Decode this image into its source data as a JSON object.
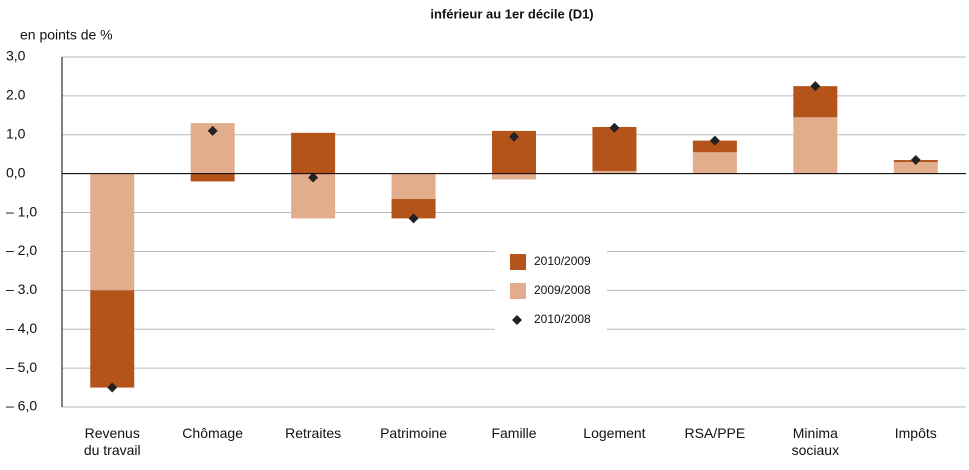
{
  "chart_data": {
    "type": "stacked_bar",
    "title": "inférieur au 1er décile (D1)",
    "y_axis_label": "en  points de %",
    "categories": [
      "Revenus du travail",
      "Chômage",
      "Retraites",
      "Patrimoine",
      "Famille",
      "Logement",
      "RSA/PPE",
      "Minima sociaux",
      "Impôts"
    ],
    "series": [
      {
        "name": "2009/2008",
        "color": "#e2ad8c",
        "values": [
          -3.0,
          1.3,
          -1.15,
          -0.65,
          -0.15,
          0.07,
          0.55,
          1.45,
          0.3
        ]
      },
      {
        "name": "2010/2009",
        "color": "#b5541a",
        "values": [
          -2.5,
          -0.2,
          1.05,
          -0.5,
          1.1,
          1.13,
          0.3,
          0.8,
          0.05
        ]
      }
    ],
    "markers": {
      "name": "2010/2008",
      "color": "#222222",
      "values": [
        -5.5,
        1.1,
        -0.1,
        -1.15,
        0.95,
        1.18,
        0.85,
        2.25,
        0.35
      ]
    },
    "ylim": [
      -6,
      3
    ],
    "yticks": [
      {
        "value": 3,
        "label": "3,0"
      },
      {
        "value": 2,
        "label": "2.0"
      },
      {
        "value": 1,
        "label": "1,0"
      },
      {
        "value": 0,
        "label": "0,0"
      },
      {
        "value": -1,
        "label": "– 1,0"
      },
      {
        "value": -2,
        "label": "– 2,0"
      },
      {
        "value": -3,
        "label": "– 3.0"
      },
      {
        "value": -4,
        "label": "– 4,0"
      },
      {
        "value": -5,
        "label": "– 5,0"
      },
      {
        "value": -6,
        "label": "– 6,0"
      }
    ],
    "grid": true
  }
}
